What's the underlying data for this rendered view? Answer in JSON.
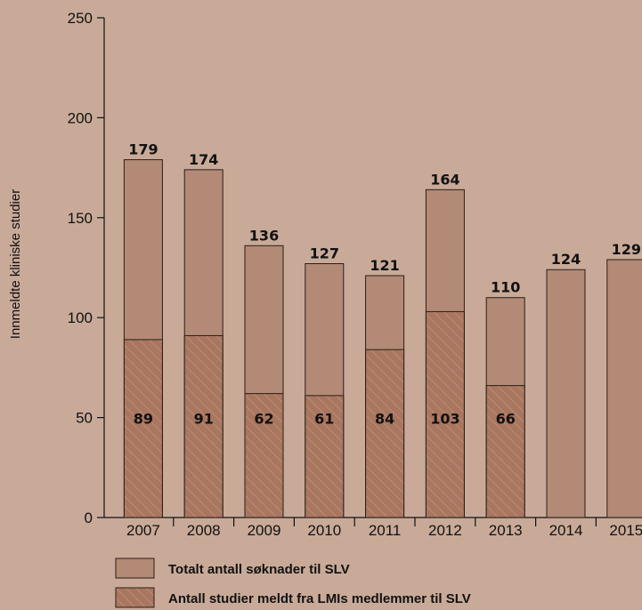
{
  "chart_data": {
    "type": "bar",
    "ylabel": "Innmeldte kliniske studier",
    "ylim": [
      0,
      250
    ],
    "yticks": [
      0,
      50,
      100,
      150,
      200,
      250
    ],
    "categories": [
      "2007",
      "2008",
      "2009",
      "2010",
      "2011",
      "2012",
      "2013",
      "2014",
      "2015"
    ],
    "series": [
      {
        "name": "Totalt antall søknader til SLV",
        "values": [
          179,
          174,
          136,
          127,
          121,
          164,
          110,
          124,
          129
        ],
        "color": "#b38a76"
      },
      {
        "name": "Antall studier meldt fra LMIs medlemmer til SLV",
        "values": [
          89,
          91,
          62,
          61,
          84,
          103,
          66,
          null,
          null
        ],
        "color": "#a9765f"
      }
    ],
    "legend_position": "bottom",
    "grid": false
  }
}
